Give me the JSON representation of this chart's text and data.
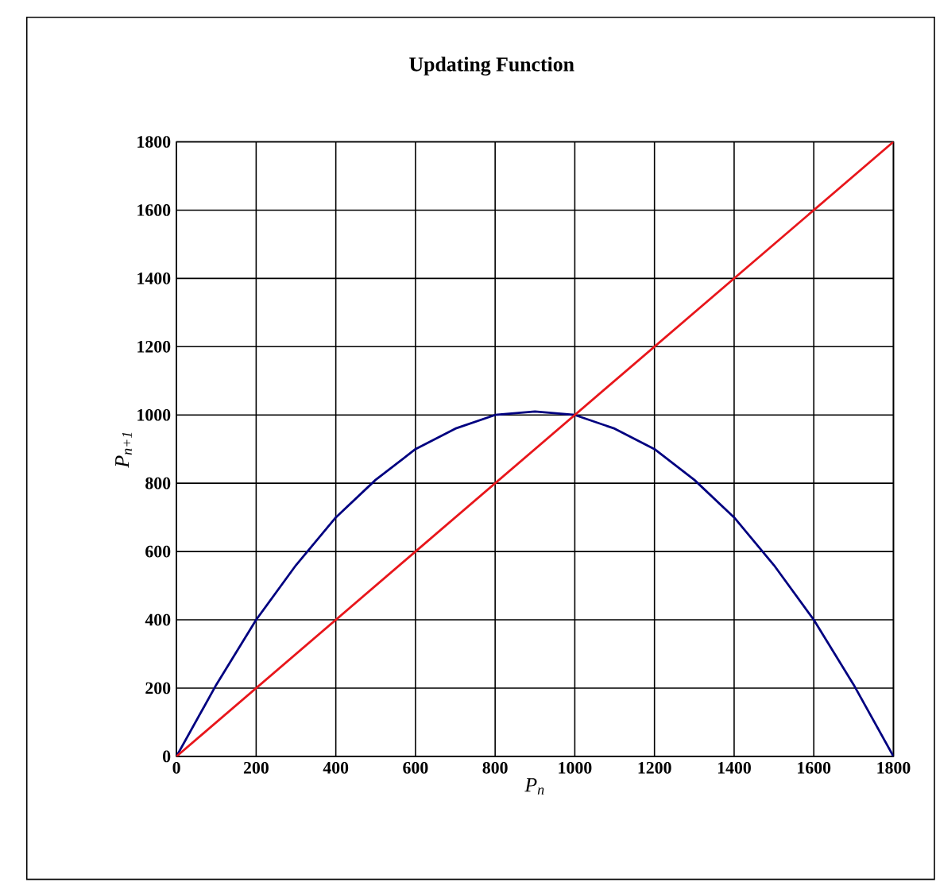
{
  "chart_data": {
    "type": "line",
    "title": "Updating Function",
    "xlabel": "P$_{n}$",
    "ylabel": "P$_{n+1}$",
    "xlim": [
      0,
      1800
    ],
    "ylim": [
      0,
      1800
    ],
    "xticks": [
      0,
      200,
      400,
      600,
      800,
      1000,
      1200,
      1400,
      1600,
      1800
    ],
    "yticks": [
      0,
      200,
      400,
      600,
      800,
      1000,
      1200,
      1400,
      1600,
      1800
    ],
    "grid": true,
    "marker": "none",
    "line_style": "solid",
    "series": [
      {
        "color": "#000080",
        "x": [
          0,
          100,
          200,
          300,
          400,
          500,
          600,
          700,
          800,
          900,
          1000,
          1100,
          1200,
          1300,
          1400,
          1500,
          1600,
          1700,
          1800
        ],
        "values": [
          0,
          210,
          400,
          560,
          700,
          810,
          900,
          960,
          1000,
          1010,
          1000,
          960,
          900,
          810,
          700,
          560,
          400,
          210,
          0
        ]
      },
      {
        "color": "#e8161b",
        "x": [
          0,
          1800
        ],
        "values": [
          0,
          1800
        ]
      }
    ]
  }
}
